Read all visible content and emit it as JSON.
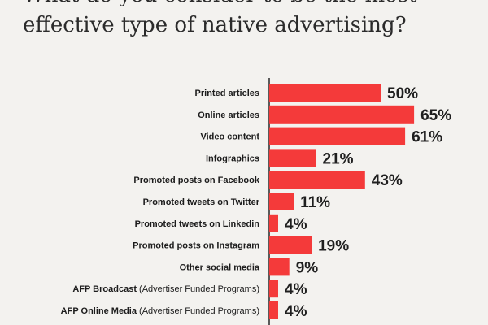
{
  "chart_data": {
    "type": "bar",
    "orientation": "horizontal",
    "title": "What do you consider to be the most effective type of native advertising?",
    "categories": [
      "Printed articles",
      "Online articles",
      "Video content",
      "Infographics",
      "Promoted posts on Facebook",
      "Promoted tweets on Twitter",
      "Promoted tweets on Linkedin",
      "Promoted posts on Instagram",
      "Other social media",
      "AFP Broadcast (Advertiser Funded Programs)",
      "AFP Online Media (Advertiser Funded Programs)"
    ],
    "values": [
      50,
      65,
      61,
      21,
      43,
      11,
      4,
      19,
      9,
      4,
      4
    ],
    "value_labels": [
      "50%",
      "65%",
      "61%",
      "21%",
      "43%",
      "11%",
      "4%",
      "19%",
      "9%",
      "4%",
      "4%"
    ],
    "xlim": [
      0,
      100
    ],
    "grid": false,
    "legend": "none",
    "colors": {
      "bar": "#f43a3a",
      "background": "#f3f2ef",
      "text": "#1c1c1c"
    }
  }
}
